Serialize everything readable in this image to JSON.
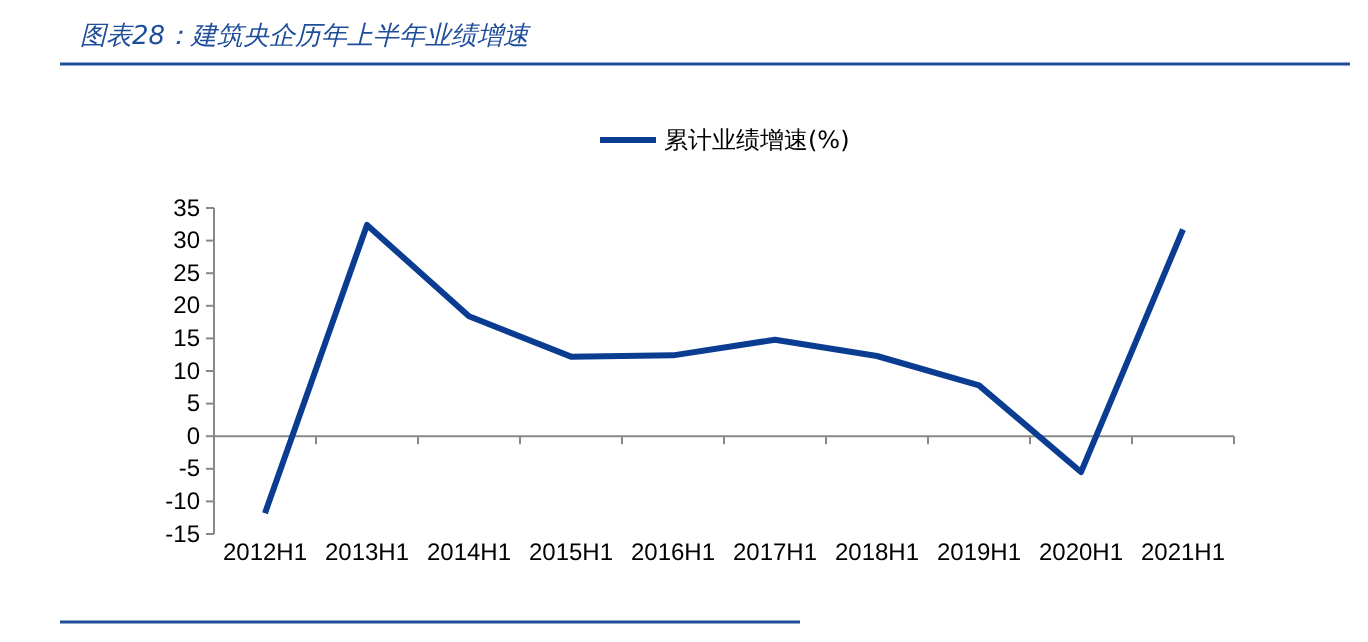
{
  "chart_data": {
    "type": "line",
    "title": "图表28：建筑央企历年上半年业绩增速",
    "categories": [
      "2012H1",
      "2013H1",
      "2014H1",
      "2015H1",
      "2016H1",
      "2017H1",
      "2018H1",
      "2019H1",
      "2020H1",
      "2021H1"
    ],
    "series": [
      {
        "name": "累计业绩增速(%)",
        "color": "#0a3d91",
        "values": [
          -11.8,
          32.4,
          18.4,
          12.2,
          12.4,
          14.8,
          12.3,
          7.8,
          -5.5,
          31.7
        ]
      }
    ],
    "ylim": [
      -15,
      35
    ],
    "yticks": [
      -15,
      -10,
      -5,
      0,
      5,
      10,
      15,
      20,
      25,
      30,
      35
    ],
    "legend": "top",
    "marker": "none",
    "line_style": "solid"
  }
}
